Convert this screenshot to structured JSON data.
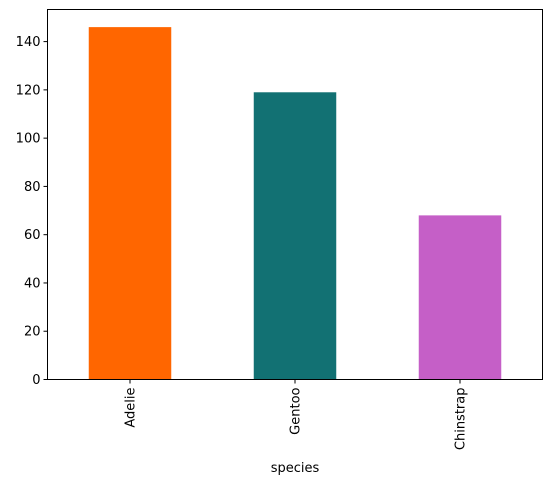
{
  "chart_data": {
    "type": "bar",
    "title": "",
    "xlabel": "species",
    "ylabel": "",
    "categories": [
      "Adelie",
      "Gentoo",
      "Chinstrap"
    ],
    "values": [
      146,
      119,
      68
    ],
    "colors": [
      "#ff6600",
      "#127173",
      "#c55fc7"
    ],
    "ylim": [
      0,
      153.3
    ],
    "yticks": [
      0,
      20,
      40,
      60,
      80,
      100,
      120,
      140
    ],
    "grid": false,
    "legend": "none",
    "xtick_rotation": "vertical"
  }
}
